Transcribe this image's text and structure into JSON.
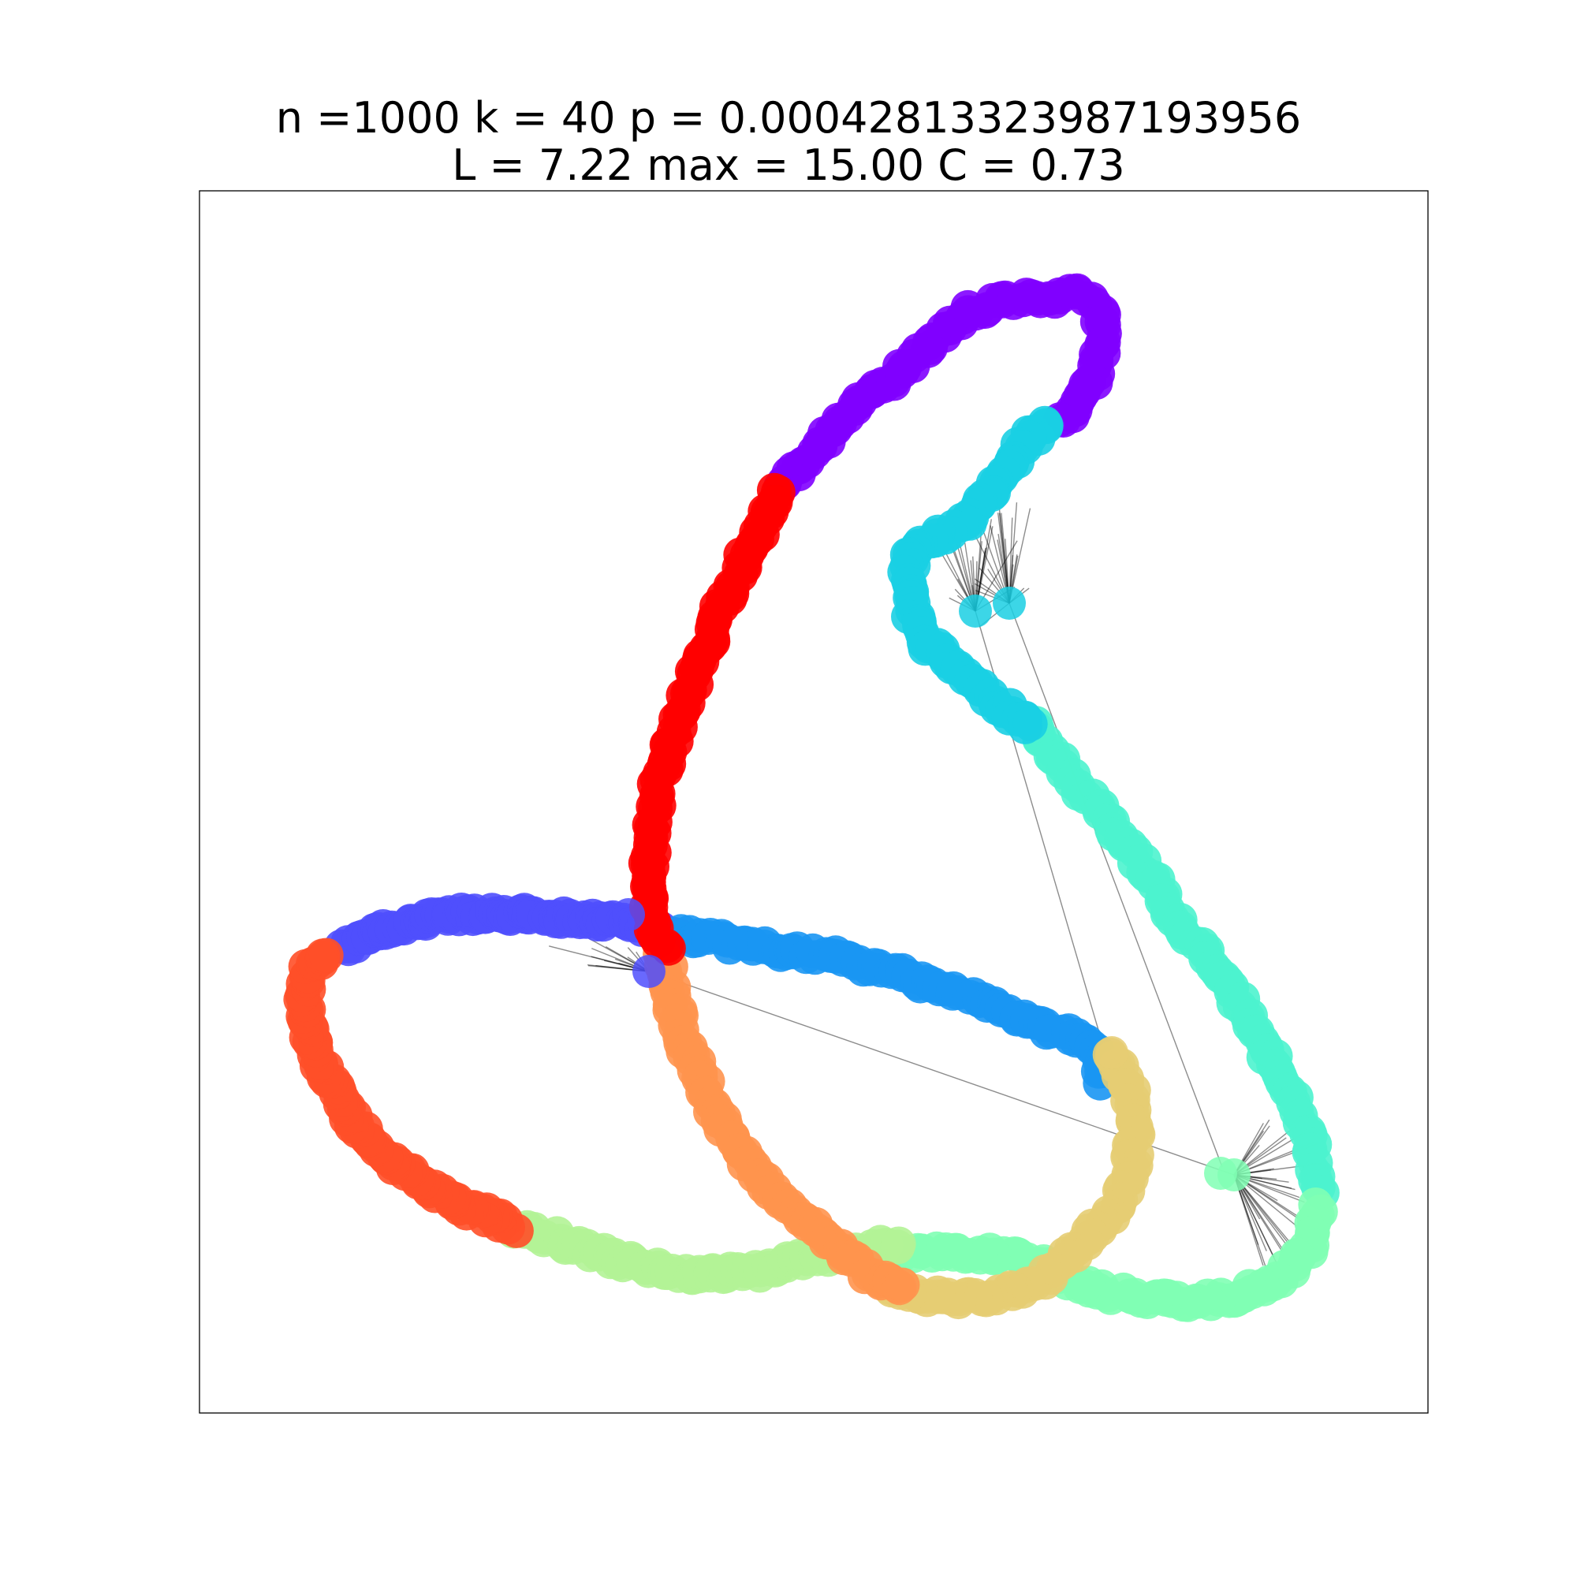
{
  "title": {
    "line1": "n =1000 k = 40 p = 0.00042813323987193956",
    "line2": "L = 7.22 max = 15.00 C = 0.73"
  },
  "graph": {
    "node_count": 1000,
    "ring_neighbors_k": 40,
    "rewire_probability": 0.00042813323987193956,
    "avg_path_length": 7.22,
    "max_path_length": 15.0,
    "clustering": 0.73,
    "edge_color": "#000000",
    "colormap": "rainbow",
    "segment_colors": [
      "#8000ff",
      "#4f4ffd",
      "#1996f3",
      "#1acfe3",
      "#4df3ce",
      "#80ffb4",
      "#b2f396",
      "#e6cd73",
      "#ff944e",
      "#ff4f28",
      "#ff0000"
    ]
  }
}
